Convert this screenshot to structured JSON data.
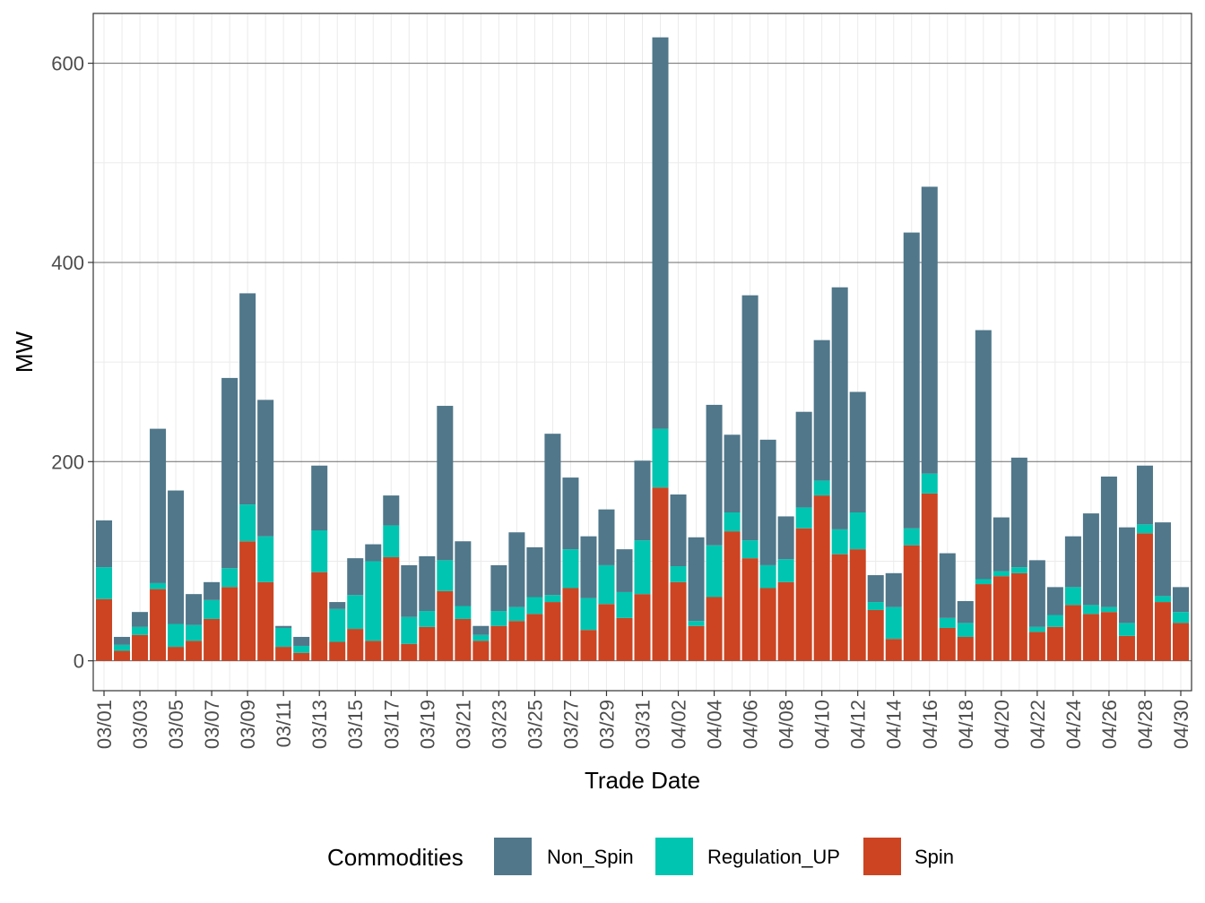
{
  "chart_data": {
    "type": "bar",
    "stacked": true,
    "xlabel": "Trade Date",
    "ylabel": "MW",
    "ylim": [
      -30,
      650
    ],
    "y_ticks": [
      0,
      200,
      400,
      600
    ],
    "legend_title": "Commodities",
    "legend_position": "bottom",
    "categories": [
      "03/01",
      "03/02",
      "03/03",
      "03/04",
      "03/05",
      "03/06",
      "03/07",
      "03/08",
      "03/09",
      "03/10",
      "03/11",
      "03/12",
      "03/13",
      "03/14",
      "03/15",
      "03/16",
      "03/17",
      "03/18",
      "03/19",
      "03/20",
      "03/21",
      "03/22",
      "03/23",
      "03/24",
      "03/25",
      "03/26",
      "03/27",
      "03/28",
      "03/29",
      "03/30",
      "03/31",
      "04/01",
      "04/02",
      "04/03",
      "04/04",
      "04/05",
      "04/06",
      "04/07",
      "04/08",
      "04/09",
      "04/10",
      "04/11",
      "04/12",
      "04/13",
      "04/14",
      "04/15",
      "04/16",
      "04/17",
      "04/18",
      "04/19",
      "04/20",
      "04/21",
      "04/22",
      "04/23",
      "04/24",
      "04/25",
      "04/26",
      "04/27",
      "04/28",
      "04/29",
      "04/30"
    ],
    "x_tick_labels": [
      "03/01",
      "03/03",
      "03/05",
      "03/07",
      "03/09",
      "03/11",
      "03/13",
      "03/15",
      "03/17",
      "03/19",
      "03/21",
      "03/23",
      "03/25",
      "03/27",
      "03/29",
      "03/31",
      "04/02",
      "04/04",
      "04/06",
      "04/08",
      "04/10",
      "04/12",
      "04/14",
      "04/16",
      "04/18",
      "04/20",
      "04/22",
      "04/24",
      "04/26",
      "04/28",
      "04/30"
    ],
    "series": [
      {
        "name": "Spin",
        "color": "#cc4422",
        "values": [
          62,
          10,
          26,
          72,
          14,
          20,
          42,
          74,
          120,
          79,
          14,
          8,
          89,
          19,
          32,
          20,
          104,
          17,
          34,
          70,
          42,
          20,
          35,
          40,
          47,
          59,
          73,
          31,
          57,
          43,
          67,
          174,
          79,
          35,
          64,
          130,
          103,
          73,
          79,
          133,
          166,
          107,
          112,
          51,
          22,
          116,
          168,
          33,
          24,
          77,
          85,
          88,
          29,
          34,
          56,
          47,
          49,
          25,
          128,
          59,
          38
        ]
      },
      {
        "name": "Regulation_UP",
        "color": "#00c5b0",
        "values": [
          32,
          6,
          8,
          6,
          23,
          16,
          19,
          19,
          37,
          46,
          19,
          7,
          42,
          33,
          34,
          80,
          32,
          27,
          16,
          31,
          13,
          6,
          15,
          14,
          17,
          7,
          39,
          32,
          39,
          26,
          54,
          59,
          16,
          5,
          52,
          19,
          18,
          23,
          23,
          21,
          15,
          25,
          37,
          8,
          32,
          17,
          20,
          10,
          14,
          5,
          5,
          6,
          5,
          12,
          18,
          9,
          5,
          13,
          9,
          6,
          11
        ]
      },
      {
        "name": "Non_Spin",
        "color": "#50778a",
        "values": [
          47,
          8,
          15,
          155,
          134,
          31,
          18,
          191,
          212,
          137,
          2,
          9,
          65,
          7,
          37,
          17,
          30,
          52,
          55,
          155,
          65,
          9,
          46,
          75,
          50,
          162,
          72,
          62,
          56,
          43,
          80,
          393,
          72,
          84,
          141,
          78,
          246,
          126,
          43,
          96,
          141,
          243,
          121,
          27,
          34,
          297,
          288,
          65,
          22,
          250,
          54,
          110,
          67,
          28,
          51,
          92,
          131,
          96,
          59,
          74,
          25
        ]
      }
    ]
  }
}
